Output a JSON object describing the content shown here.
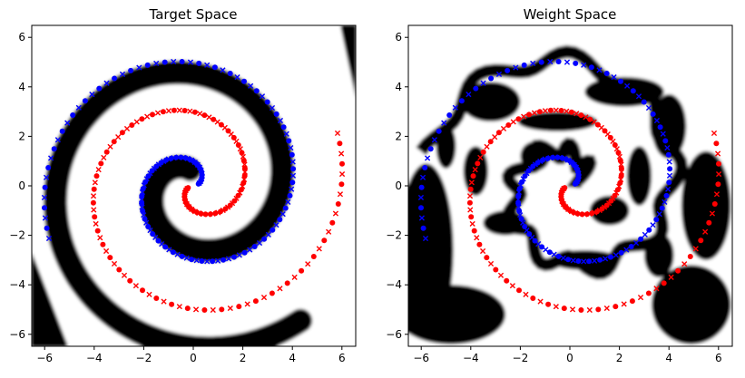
{
  "chart_data": [
    {
      "type": "scatter",
      "title": "Target Space",
      "xlabel": "",
      "ylabel": "",
      "xlim": [
        -6.5,
        6.5
      ],
      "ylim": [
        -6.5,
        6.5
      ],
      "xticks": [
        "−6",
        "−4",
        "−2",
        "0",
        "2",
        "4",
        "6"
      ],
      "yticks": [
        "−6",
        "−4",
        "−2",
        "0",
        "2",
        "4",
        "6"
      ],
      "background": "two-spiral decision region (black / white)",
      "series": [
        {
          "color": "#0000ff",
          "markers": [
            "o",
            "x"
          ]
        },
        {
          "color": "#ff0000",
          "markers": [
            "o",
            "x"
          ]
        }
      ]
    },
    {
      "type": "scatter",
      "title": "Weight Space",
      "xlabel": "",
      "ylabel": "",
      "xlim": [
        -6.5,
        6.5
      ],
      "ylim": [
        -6.5,
        6.5
      ],
      "xticks": [
        "−6",
        "−4",
        "−2",
        "0",
        "2",
        "4",
        "6"
      ],
      "yticks": [
        "−6",
        "−4",
        "−2",
        "0",
        "2",
        "4",
        "6"
      ],
      "background": "fragmented decision region (black / white)",
      "series": [
        {
          "color": "#0000ff",
          "markers": [
            "o",
            "x"
          ]
        },
        {
          "color": "#ff0000",
          "markers": [
            "o",
            "x"
          ]
        }
      ]
    }
  ]
}
